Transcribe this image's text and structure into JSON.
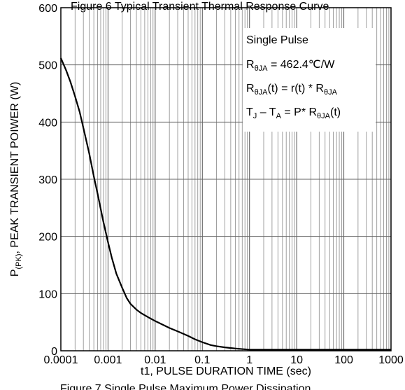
{
  "header_cut_text": "Figure 6 Typical Transient Thermal Response Curve",
  "footer_cut_text": "Figure 7 Single Pulse Maximum Power Dissipation",
  "chart_data": {
    "type": "line",
    "xscale": "log",
    "xlim": [
      0.0001,
      1000
    ],
    "ylim": [
      0,
      600
    ],
    "xticks": [
      "0.0001",
      "0.001",
      "0.01",
      "0.1",
      "1",
      "10",
      "100",
      "1000"
    ],
    "yticks": [
      "0",
      "100",
      "200",
      "300",
      "400",
      "500",
      "600"
    ],
    "xlabel": "t1, PULSE DURATION TIME (sec)",
    "ylabel": {
      "main": "P",
      "sub": "(PK)",
      "rest": ",  PEAK TRANSIENT POIWER (W)"
    },
    "grid": true,
    "annotations": [
      {
        "key": "single_pulse",
        "text": "Single Pulse"
      },
      {
        "key": "rthja",
        "parts": [
          [
            "R",
            ""
          ],
          [
            "θJA",
            "sub"
          ],
          [
            " = 462.4℃/W",
            ""
          ]
        ]
      },
      {
        "key": "rthja_t",
        "parts": [
          [
            "R",
            ""
          ],
          [
            "θJA",
            "sub"
          ],
          [
            "(t) = r(t) * R",
            ""
          ],
          [
            "θJA",
            "sub"
          ]
        ]
      },
      {
        "key": "tj_ta",
        "parts": [
          [
            "T",
            ""
          ],
          [
            "J",
            "sub"
          ],
          [
            " – T",
            ""
          ],
          [
            "A",
            "sub"
          ],
          [
            " = P* R",
            ""
          ],
          [
            "θJA",
            "sub"
          ],
          [
            "(t)",
            ""
          ]
        ]
      }
    ],
    "series": [
      {
        "x": [
          0.0001,
          0.00013,
          0.00016,
          0.0002,
          0.00025,
          0.0003,
          0.0004,
          0.0005,
          0.0006,
          0.0007,
          0.0008,
          0.001,
          0.0012,
          0.0015,
          0.002,
          0.0025,
          0.003,
          0.004,
          0.005,
          0.007,
          0.01,
          0.015,
          0.02,
          0.03,
          0.05,
          0.07,
          0.1,
          0.15,
          0.2,
          0.3,
          0.5,
          0.7,
          1,
          2,
          5,
          10,
          100,
          1000
        ],
        "y": [
          512,
          490,
          470,
          445,
          418,
          390,
          345,
          305,
          275,
          248,
          225,
          190,
          163,
          135,
          110,
          92,
          82,
          72,
          66,
          59,
          52,
          45,
          40,
          34,
          26,
          20,
          15,
          10,
          8,
          6,
          4,
          3,
          2,
          2,
          2,
          2,
          2,
          2
        ]
      }
    ]
  }
}
